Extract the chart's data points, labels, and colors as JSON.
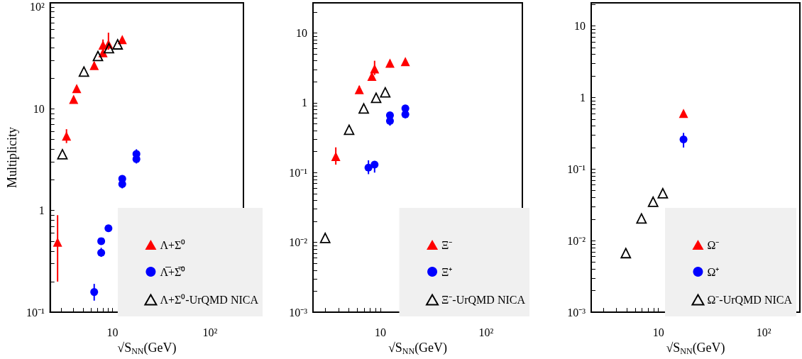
{
  "chart_data": [
    {
      "type": "scatter",
      "marker": "triangle",
      "xlabel": "√S$_{NN}$(GeV)",
      "ylabel": "Multiplicity",
      "log": "xy",
      "legend": "bottom right",
      "xlim": [
        2.3,
        220
      ],
      "ylim": [
        0.1,
        110
      ],
      "xticks": [
        {
          "value": 3,
          "label": null
        },
        {
          "value": 4,
          "label": null
        },
        {
          "value": 5,
          "label": null
        },
        {
          "value": 6,
          "label": null
        },
        {
          "value": 7,
          "label": null
        },
        {
          "value": 8,
          "label": null
        },
        {
          "value": 9,
          "label": null
        },
        {
          "value": 10,
          "label": "10"
        },
        {
          "value": 20,
          "label": null
        },
        {
          "value": 30,
          "label": null
        },
        {
          "value": 40,
          "label": null
        },
        {
          "value": 50,
          "label": null
        },
        {
          "value": 60,
          "label": null
        },
        {
          "value": 70,
          "label": null
        },
        {
          "value": 80,
          "label": null
        },
        {
          "value": 90,
          "label": null
        },
        {
          "value": 100,
          "label": "10²"
        },
        {
          "value": 200,
          "label": null
        }
      ],
      "yticks": [
        {
          "value": 0.1,
          "label": "10⁻¹"
        },
        {
          "value": 0.2,
          "label": null
        },
        {
          "value": 0.3,
          "label": null
        },
        {
          "value": 0.4,
          "label": null
        },
        {
          "value": 0.5,
          "label": null
        },
        {
          "value": 0.6,
          "label": null
        },
        {
          "value": 0.7,
          "label": null
        },
        {
          "value": 0.8,
          "label": null
        },
        {
          "value": 0.9,
          "label": null
        },
        {
          "value": 1,
          "label": "1"
        },
        {
          "value": 2,
          "label": null
        },
        {
          "value": 3,
          "label": null
        },
        {
          "value": 4,
          "label": null
        },
        {
          "value": 5,
          "label": null
        },
        {
          "value": 6,
          "label": null
        },
        {
          "value": 7,
          "label": null
        },
        {
          "value": 8,
          "label": null
        },
        {
          "value": 9,
          "label": null
        },
        {
          "value": 10,
          "label": "10"
        },
        {
          "value": 20,
          "label": null
        },
        {
          "value": 30,
          "label": null
        },
        {
          "value": 40,
          "label": null
        },
        {
          "value": 50,
          "label": null
        },
        {
          "value": 60,
          "label": null
        },
        {
          "value": 70,
          "label": null
        },
        {
          "value": 80,
          "label": null
        },
        {
          "value": 90,
          "label": null
        },
        {
          "value": 100,
          "label": "10²"
        }
      ],
      "series": [
        {
          "name": "Λ+Σ⁰",
          "color": "#ff0000",
          "marker": "triangle",
          "x": [
            2.74,
            3.38,
            4.0,
            4.3,
            6.5,
            8.0,
            8.0,
            9.1,
            12.6
          ],
          "values": [
            0.49,
            5.4,
            12.4,
            15.8,
            26.7,
            35.6,
            42.3,
            43.4,
            48
          ],
          "errors": [
            [
              0.2,
              0.9
            ],
            [
              4.6,
              6.3
            ],
            null,
            null,
            [
              24.5,
              29
            ],
            null,
            [
              37,
              48
            ],
            [
              38,
              56
            ],
            null
          ]
        },
        {
          "name": "Λ̅+Σ̅⁰",
          "color": "#0000ff",
          "marker": "circle",
          "x": [
            6.5,
            7.67,
            7.67,
            9.1,
            12.6,
            12.6,
            17.6,
            17.6
          ],
          "values": [
            0.158,
            0.5,
            0.385,
            0.67,
            2.05,
            1.82,
            3.6,
            3.2
          ],
          "errors": [
            [
              0.13,
              0.19
            ],
            null,
            [
              0.35,
              0.43
            ],
            [
              0.62,
              0.72
            ],
            null,
            [
              1.65,
              1.82
            ],
            [
              3.6,
              4.0
            ],
            [
              2.9,
              3.2
            ]
          ]
        },
        {
          "name": "Λ+Σ⁰-UrQMD NICA",
          "color": "#000000",
          "x": [
            3.07,
            5.1,
            7.1,
            9.2,
            11.3
          ],
          "values": [
            3.57,
            23.2,
            33,
            39.5,
            43
          ]
        }
      ]
    },
    {
      "type": "scatter",
      "marker": "triangle",
      "xlabel": "√S$_{NN}$(GeV)",
      "log": "xy",
      "legend": "bottom right",
      "xlim": [
        2.3,
        220
      ],
      "ylim": [
        0.001,
        27
      ],
      "xticks": [
        {
          "value": 3,
          "label": null
        },
        {
          "value": 4,
          "label": null
        },
        {
          "value": 5,
          "label": null
        },
        {
          "value": 6,
          "label": null
        },
        {
          "value": 7,
          "label": null
        },
        {
          "value": 8,
          "label": null
        },
        {
          "value": 9,
          "label": null
        },
        {
          "value": 10,
          "label": "10"
        },
        {
          "value": 20,
          "label": null
        },
        {
          "value": 30,
          "label": null
        },
        {
          "value": 40,
          "label": null
        },
        {
          "value": 50,
          "label": null
        },
        {
          "value": 60,
          "label": null
        },
        {
          "value": 70,
          "label": null
        },
        {
          "value": 80,
          "label": null
        },
        {
          "value": 90,
          "label": null
        },
        {
          "value": 100,
          "label": "10²"
        },
        {
          "value": 200,
          "label": null
        }
      ],
      "yticks": [
        {
          "value": 0.001,
          "label": "10⁻³"
        },
        {
          "value": 0.002,
          "label": null
        },
        {
          "value": 0.003,
          "label": null
        },
        {
          "value": 0.004,
          "label": null
        },
        {
          "value": 0.005,
          "label": null
        },
        {
          "value": 0.006,
          "label": null
        },
        {
          "value": 0.007,
          "label": null
        },
        {
          "value": 0.008,
          "label": null
        },
        {
          "value": 0.009,
          "label": null
        },
        {
          "value": 0.01,
          "label": "10⁻²"
        },
        {
          "value": 0.02,
          "label": null
        },
        {
          "value": 0.03,
          "label": null
        },
        {
          "value": 0.04,
          "label": null
        },
        {
          "value": 0.05,
          "label": null
        },
        {
          "value": 0.06,
          "label": null
        },
        {
          "value": 0.07,
          "label": null
        },
        {
          "value": 0.08,
          "label": null
        },
        {
          "value": 0.09,
          "label": null
        },
        {
          "value": 0.1,
          "label": "10⁻¹"
        },
        {
          "value": 0.2,
          "label": null
        },
        {
          "value": 0.3,
          "label": null
        },
        {
          "value": 0.4,
          "label": null
        },
        {
          "value": 0.5,
          "label": null
        },
        {
          "value": 0.6,
          "label": null
        },
        {
          "value": 0.7,
          "label": null
        },
        {
          "value": 0.8,
          "label": null
        },
        {
          "value": 0.9,
          "label": null
        },
        {
          "value": 1,
          "label": "1"
        },
        {
          "value": 2,
          "label": null
        },
        {
          "value": 3,
          "label": null
        },
        {
          "value": 4,
          "label": null
        },
        {
          "value": 5,
          "label": null
        },
        {
          "value": 6,
          "label": null
        },
        {
          "value": 7,
          "label": null
        },
        {
          "value": 8,
          "label": null
        },
        {
          "value": 9,
          "label": null
        },
        {
          "value": 10,
          "label": "10"
        },
        {
          "value": 20,
          "label": null
        }
      ],
      "series": [
        {
          "name": "Ξ⁻",
          "color": "#ff0000",
          "marker": "triangle",
          "x": [
            3.78,
            6.3,
            8.3,
            8.8,
            12.3,
            17.2
          ],
          "values": [
            0.17,
            1.55,
            2.4,
            3.07,
            3.7,
            3.9
          ],
          "errors": [
            [
              0.13,
              0.23
            ],
            [
              1.4,
              1.75
            ],
            null,
            [
              2.5,
              4.0
            ],
            [
              3.2,
              4.1
            ],
            null
          ]
        },
        {
          "name": "Ξ⁺",
          "color": "#0000ff",
          "marker": "circle",
          "x": [
            7.7,
            8.8,
            12.3,
            12.3,
            17.2,
            17.2
          ],
          "values": [
            0.118,
            0.13,
            0.66,
            0.55,
            0.83,
            0.68
          ],
          "errors": [
            [
              0.095,
              0.15
            ],
            [
              0.1,
              0.14
            ],
            null,
            [
              0.47,
              0.55
            ],
            null,
            [
              0.6,
              0.68
            ]
          ]
        },
        {
          "name": "Ξ⁻-UrQMD NICA",
          "color": "#000000",
          "x": [
            3.0,
            5.05,
            6.95,
            9.1,
            11.1
          ],
          "values": [
            0.0116,
            0.41,
            0.83,
            1.18,
            1.41
          ]
        }
      ]
    },
    {
      "type": "scatter",
      "marker": "triangle",
      "xlabel": "√S$_{NN}$(GeV)",
      "log": "xy",
      "legend": "bottom right",
      "xlim": [
        2.3,
        220
      ],
      "ylim": [
        0.001,
        21
      ],
      "xticks": [
        {
          "value": 3,
          "label": null
        },
        {
          "value": 4,
          "label": null
        },
        {
          "value": 5,
          "label": null
        },
        {
          "value": 6,
          "label": null
        },
        {
          "value": 7,
          "label": null
        },
        {
          "value": 8,
          "label": null
        },
        {
          "value": 9,
          "label": null
        },
        {
          "value": 10,
          "label": "10"
        },
        {
          "value": 20,
          "label": null
        },
        {
          "value": 30,
          "label": null
        },
        {
          "value": 40,
          "label": null
        },
        {
          "value": 50,
          "label": null
        },
        {
          "value": 60,
          "label": null
        },
        {
          "value": 70,
          "label": null
        },
        {
          "value": 80,
          "label": null
        },
        {
          "value": 90,
          "label": null
        },
        {
          "value": 100,
          "label": "10²"
        },
        {
          "value": 200,
          "label": null
        }
      ],
      "yticks": [
        {
          "value": 0.001,
          "label": "10⁻³"
        },
        {
          "value": 0.002,
          "label": null
        },
        {
          "value": 0.003,
          "label": null
        },
        {
          "value": 0.004,
          "label": null
        },
        {
          "value": 0.005,
          "label": null
        },
        {
          "value": 0.006,
          "label": null
        },
        {
          "value": 0.007,
          "label": null
        },
        {
          "value": 0.008,
          "label": null
        },
        {
          "value": 0.009,
          "label": null
        },
        {
          "value": 0.01,
          "label": "10⁻²"
        },
        {
          "value": 0.02,
          "label": null
        },
        {
          "value": 0.03,
          "label": null
        },
        {
          "value": 0.04,
          "label": null
        },
        {
          "value": 0.05,
          "label": null
        },
        {
          "value": 0.06,
          "label": null
        },
        {
          "value": 0.07,
          "label": null
        },
        {
          "value": 0.08,
          "label": null
        },
        {
          "value": 0.09,
          "label": null
        },
        {
          "value": 0.1,
          "label": "10⁻¹"
        },
        {
          "value": 0.2,
          "label": null
        },
        {
          "value": 0.3,
          "label": null
        },
        {
          "value": 0.4,
          "label": null
        },
        {
          "value": 0.5,
          "label": null
        },
        {
          "value": 0.6,
          "label": null
        },
        {
          "value": 0.7,
          "label": null
        },
        {
          "value": 0.8,
          "label": null
        },
        {
          "value": 0.9,
          "label": null
        },
        {
          "value": 1,
          "label": "1"
        },
        {
          "value": 2,
          "label": null
        },
        {
          "value": 3,
          "label": null
        },
        {
          "value": 4,
          "label": null
        },
        {
          "value": 5,
          "label": null
        },
        {
          "value": 6,
          "label": null
        },
        {
          "value": 7,
          "label": null
        },
        {
          "value": 8,
          "label": null
        },
        {
          "value": 9,
          "label": null
        },
        {
          "value": 10,
          "label": "10"
        },
        {
          "value": 20,
          "label": null
        }
      ],
      "series": [
        {
          "name": "Ω⁻",
          "color": "#ff0000",
          "marker": "triangle",
          "x": [
            17.3
          ],
          "values": [
            0.6
          ]
        },
        {
          "name": "Ω⁺",
          "color": "#0000ff",
          "marker": "circle",
          "x": [
            17.3
          ],
          "values": [
            0.26
          ],
          "errors": [
            [
              0.2,
              0.32
            ]
          ]
        },
        {
          "name": "Ω⁻-UrQMD NICA",
          "color": "#000000",
          "x": [
            4.9,
            6.9,
            8.9,
            11
          ],
          "values": [
            0.0067,
            0.0204,
            0.035,
            0.046
          ]
        }
      ]
    }
  ]
}
